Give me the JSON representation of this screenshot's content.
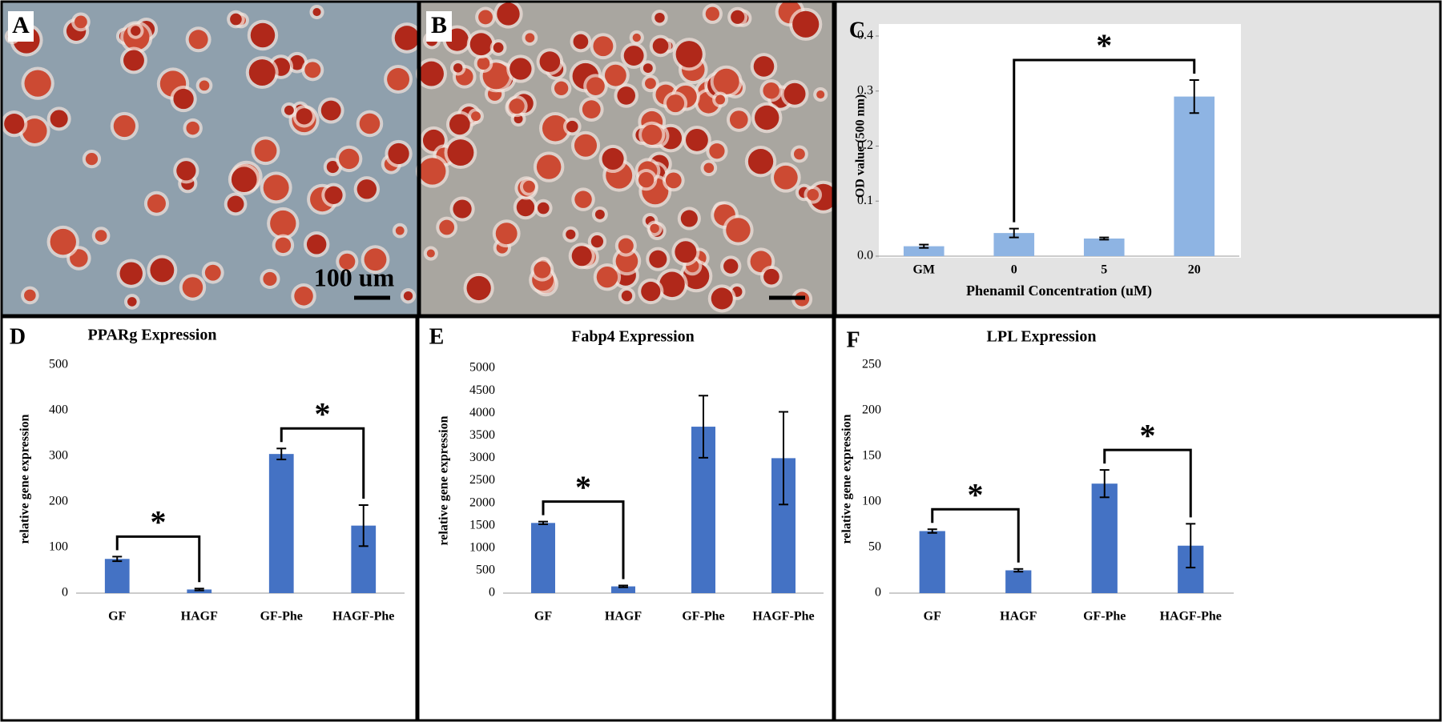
{
  "panels": [
    {
      "label": "A",
      "scale_text": "100 um"
    },
    {
      "label": "B"
    }
  ],
  "chart_data": [
    {
      "type": "bar",
      "label": "C",
      "ylabel": "OD value (500 nm)",
      "xlabel": "Phenamil Concentration (uM)",
      "categories": [
        "GM",
        "0",
        "5",
        "20"
      ],
      "values": [
        0.018,
        0.042,
        0.032,
        0.29
      ],
      "errors": [
        0.003,
        0.008,
        0.002,
        0.03
      ],
      "color": "#8eb4e3",
      "ylim": [
        0,
        0.4
      ],
      "yticks": [
        {
          "value": 0,
          "label": "0.0"
        },
        0.1,
        0.2,
        0.3,
        0.4
      ],
      "annotations": [
        {
          "text": "*",
          "pair": [
            1,
            3
          ]
        }
      ]
    },
    {
      "type": "bar",
      "label": "D",
      "title": "PPARg Expression",
      "ylabel": "relative gene expression",
      "categories": [
        "GF",
        "HAGF",
        "GF-Phe",
        "HAGF-Phe"
      ],
      "values": [
        75,
        8,
        305,
        148
      ],
      "errors": [
        5,
        2,
        12,
        45
      ],
      "color": "#4472c4",
      "ylim": [
        0,
        500
      ],
      "yticks": [
        0,
        100,
        200,
        300,
        400,
        500
      ],
      "annotations": [
        {
          "text": "*",
          "pair": [
            0,
            1
          ]
        },
        {
          "text": "*",
          "pair": [
            2,
            3
          ]
        }
      ]
    },
    {
      "type": "bar",
      "label": "E",
      "title": "Fabp4 Expression",
      "ylabel": "relative gene expression",
      "categories": [
        "GF",
        "HAGF",
        "GF-Phe",
        "HAGF-Phe"
      ],
      "values": [
        1560,
        150,
        3700,
        3000
      ],
      "errors": [
        30,
        20,
        690,
        1030
      ],
      "color": "#4472c4",
      "ylim": [
        0,
        5000
      ],
      "yticks": [
        0,
        500,
        1000,
        1500,
        2000,
        2500,
        3000,
        3500,
        4000,
        4500,
        5000
      ],
      "annotations": [
        {
          "text": "*",
          "pair": [
            0,
            1
          ]
        }
      ]
    },
    {
      "type": "bar",
      "label": "F",
      "title": "LPL Expression",
      "ylabel": "relative gene expression",
      "categories": [
        "GF",
        "HAGF",
        "GF-Phe",
        "HAGF-Phe"
      ],
      "values": [
        68,
        25,
        120,
        52
      ],
      "errors": [
        2,
        1.5,
        15,
        24
      ],
      "color": "#4472c4",
      "ylim": [
        0,
        250
      ],
      "yticks": [
        0,
        50,
        100,
        150,
        200,
        250
      ],
      "annotations": [
        {
          "text": "*",
          "pair": [
            0,
            1
          ]
        },
        {
          "text": "*",
          "pair": [
            2,
            3
          ]
        }
      ]
    }
  ]
}
